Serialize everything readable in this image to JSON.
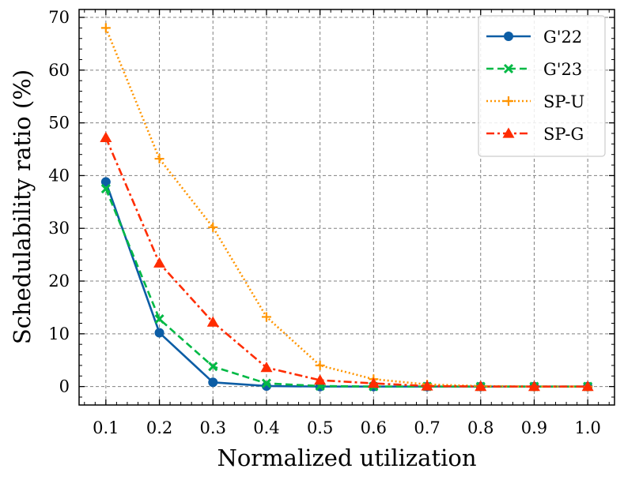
{
  "chart_data": {
    "type": "line",
    "title": "",
    "xlabel": "Normalized utilization",
    "ylabel": "Schedulability ratio (%)",
    "x": [
      0.1,
      0.2,
      0.3,
      0.4,
      0.5,
      0.6,
      0.7,
      0.8,
      0.9,
      1.0
    ],
    "x_tick_labels": [
      "0.1",
      "0.2",
      "0.3",
      "0.4",
      "0.5",
      "0.6",
      "0.7",
      "0.8",
      "0.9",
      "1.0"
    ],
    "y_ticks": [
      0,
      10,
      20,
      30,
      40,
      50,
      60,
      70
    ],
    "y_tick_labels": [
      "0",
      "10",
      "20",
      "30",
      "40",
      "50",
      "60",
      "70"
    ],
    "xlim": [
      0.05,
      1.05
    ],
    "ylim": [
      -3.5,
      71.5
    ],
    "grid": true,
    "legend_position": "top-right",
    "series": [
      {
        "name": "G'22",
        "color": "#0C5DA5",
        "marker": "circle",
        "line_style": "solid",
        "values": [
          38.8,
          10.2,
          0.8,
          0.1,
          0.0,
          0.0,
          0.0,
          0.0,
          0.0,
          0.0
        ]
      },
      {
        "name": "G'23",
        "color": "#00B945",
        "marker": "x",
        "line_style": "dashed",
        "values": [
          37.5,
          12.8,
          3.8,
          0.6,
          0.1,
          0.0,
          0.0,
          0.0,
          0.0,
          0.0
        ]
      },
      {
        "name": "SP-U",
        "color": "#FF9500",
        "marker": "plus",
        "line_style": "dotted",
        "values": [
          68.0,
          43.2,
          30.2,
          13.2,
          4.0,
          1.4,
          0.4,
          0.1,
          0.0,
          0.0
        ]
      },
      {
        "name": "SP-G",
        "color": "#FF2C00",
        "marker": "triangle",
        "line_style": "dashdot",
        "values": [
          47.2,
          23.4,
          12.2,
          3.6,
          1.2,
          0.6,
          0.1,
          0.0,
          0.0,
          0.0
        ]
      }
    ]
  }
}
